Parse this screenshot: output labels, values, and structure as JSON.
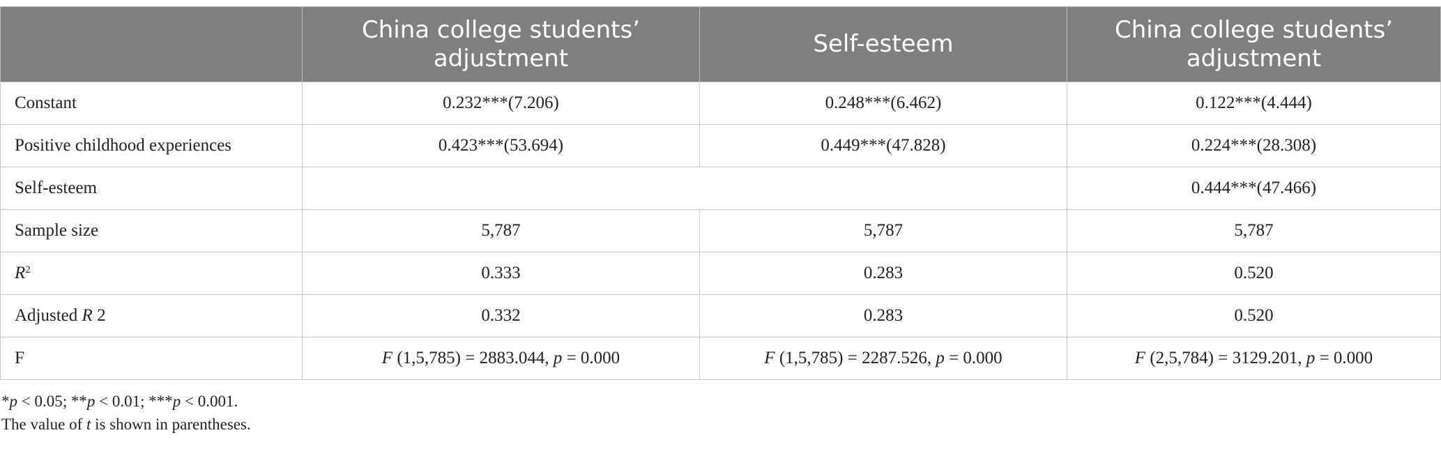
{
  "headers": [
    "",
    "China college students’ adjustment",
    "Self-esteem",
    "China college students’ adjustment"
  ],
  "rows": [
    {
      "label": "Constant",
      "c1": "0.232***(7.206)",
      "c2": "0.248***(6.462)",
      "c3": "0.122***(4.444)"
    },
    {
      "label": "Positive childhood experiences",
      "c1": "0.423***(53.694)",
      "c2": "0.449***(47.828)",
      "c3": "0.224***(28.308)"
    },
    {
      "label": "Self-esteem",
      "c1": "",
      "c2": "",
      "c3": "0.444***(47.466)"
    },
    {
      "label": "Sample size",
      "c1": "5,787",
      "c2": "5,787",
      "c3": "5,787"
    }
  ],
  "r2": {
    "label_var": "R",
    "label_sup": "2",
    "c1": "0.333",
    "c2": "0.283",
    "c3": "0.520"
  },
  "adj_r2": {
    "label_pre": "Adjusted ",
    "label_var": "R",
    "label_post": " 2",
    "c1": "0.332",
    "c2": "0.283",
    "c3": "0.520"
  },
  "f_row": {
    "label": "F",
    "c1": {
      "var": "F",
      "args": " (1,5,785) = 2883.044, ",
      "p": "p",
      "pval": " = 0.000"
    },
    "c2": {
      "var": "F",
      "args": " (1,5,785) = 2287.526, ",
      "p": "p",
      "pval": " = 0.000"
    },
    "c3": {
      "var": "F",
      "args": " (2,5,784) = 3129.201, ",
      "p": "p",
      "pval": " = 0.000"
    }
  },
  "notes": {
    "sig": [
      {
        "stars": "*",
        "p": "p",
        "val": " < 0.05; "
      },
      {
        "stars": "**",
        "p": "p",
        "val": " < 0.01; "
      },
      {
        "stars": "***",
        "p": "p",
        "val": " < 0.001."
      }
    ],
    "t_pre": "The value of ",
    "t_var": "t",
    "t_post": " is shown in parentheses."
  }
}
